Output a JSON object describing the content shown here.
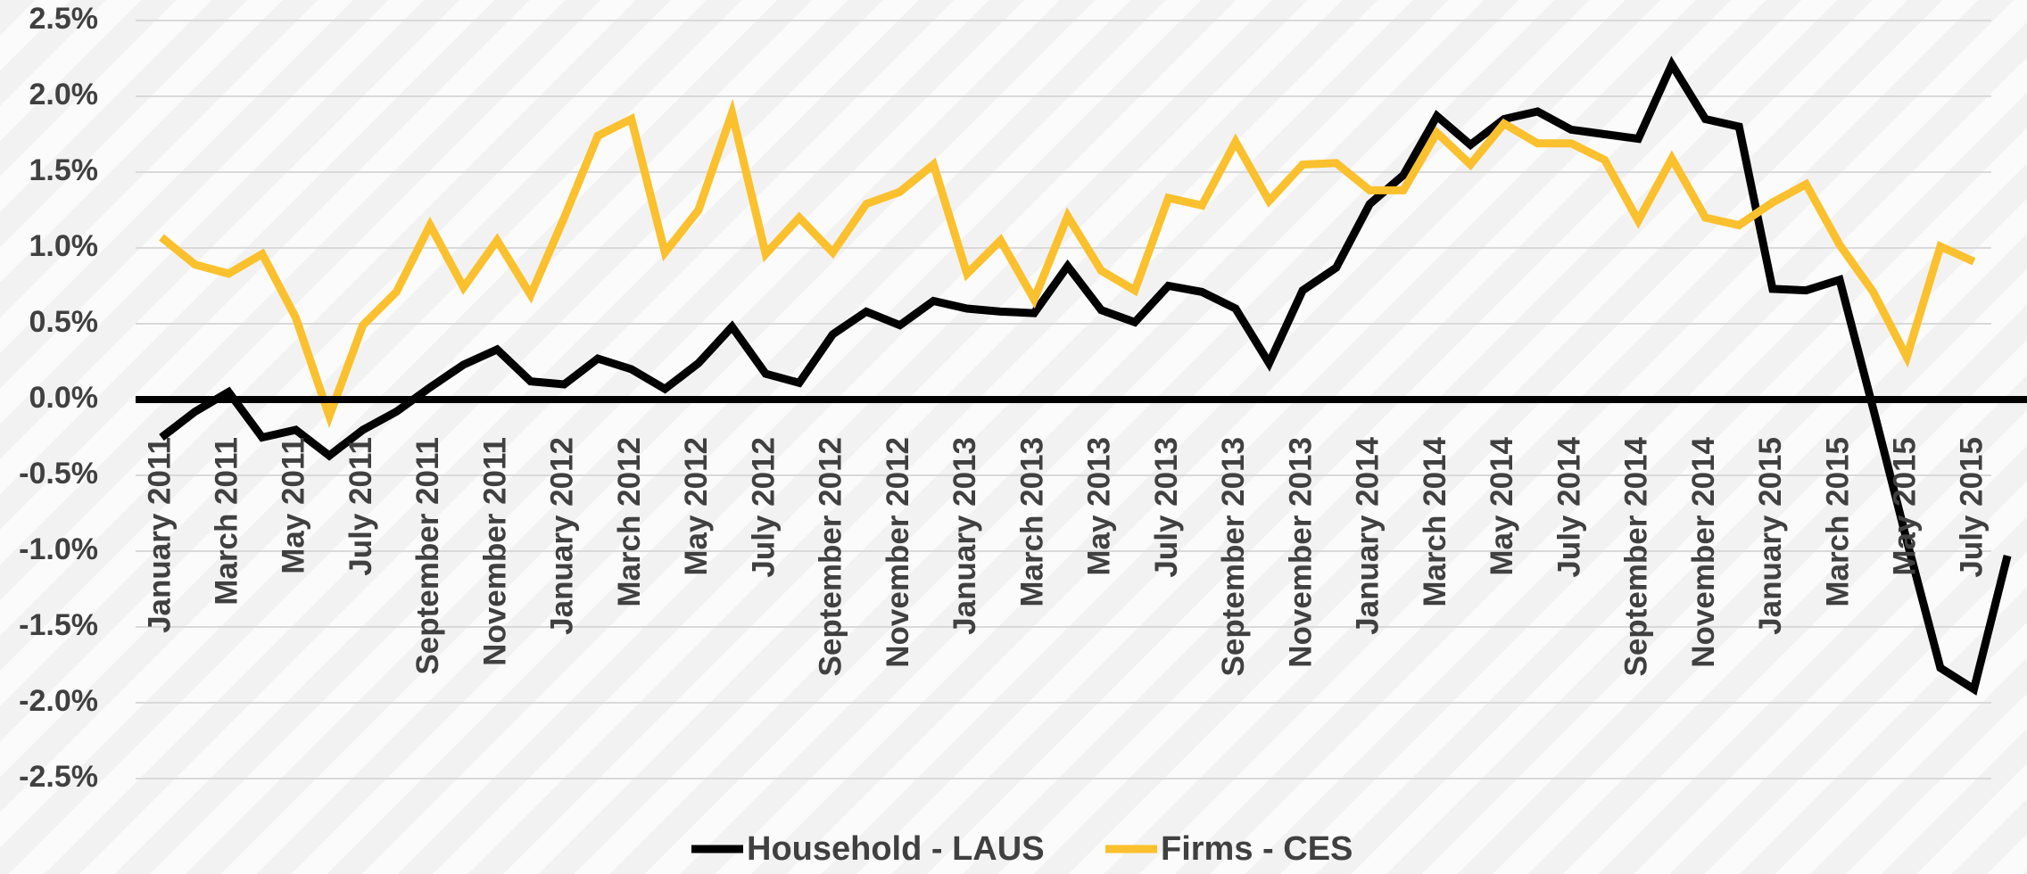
{
  "chart_data": {
    "type": "line",
    "categories": [
      "January 2011",
      null,
      "March 2011",
      null,
      "May 2011",
      null,
      "July 2011",
      null,
      "September 2011",
      null,
      "November 2011",
      null,
      "January 2012",
      null,
      "March 2012",
      null,
      "May 2012",
      null,
      "July 2012",
      null,
      "September 2012",
      null,
      "November 2012",
      null,
      "January 2013",
      null,
      "March 2013",
      null,
      "May 2013",
      null,
      "July 2013",
      null,
      "September 2013",
      null,
      "November 2013",
      null,
      "January 2014",
      null,
      "March 2014",
      null,
      "May 2014",
      null,
      "July 2014",
      null,
      "September 2014",
      null,
      "November 2014",
      null,
      "January 2015",
      null,
      "March 2015",
      null,
      "May 2015",
      null,
      "July 2015",
      null
    ],
    "series": [
      {
        "name": "Household - LAUS",
        "color": "#000000",
        "values": [
          -0.25,
          -0.08,
          0.05,
          -0.25,
          -0.2,
          -0.37,
          -0.2,
          -0.08,
          0.08,
          0.23,
          0.33,
          0.12,
          0.1,
          0.27,
          0.2,
          0.07,
          0.24,
          0.48,
          0.17,
          0.11,
          0.43,
          0.58,
          0.49,
          0.65,
          0.6,
          0.58,
          0.57,
          0.88,
          0.59,
          0.51,
          0.75,
          0.71,
          0.6,
          0.24,
          0.72,
          0.87,
          1.29,
          1.48,
          1.87,
          1.68,
          1.85,
          1.9,
          1.78,
          1.75,
          1.72,
          2.21,
          1.85,
          1.8,
          0.73,
          0.72,
          0.79,
          -0.06,
          -0.93,
          -1.77,
          -1.91,
          -1.03
        ]
      },
      {
        "name": "Firms - CES",
        "color": "#fbc02d",
        "values": [
          1.07,
          0.89,
          0.83,
          0.96,
          0.54,
          -0.11,
          0.49,
          0.71,
          1.15,
          0.74,
          1.05,
          0.69,
          1.2,
          1.74,
          1.85,
          0.97,
          1.25,
          1.89,
          0.96,
          1.2,
          0.97,
          1.29,
          1.37,
          1.55,
          0.83,
          1.05,
          0.66,
          1.21,
          0.85,
          0.72,
          1.33,
          1.28,
          1.7,
          1.31,
          1.55,
          1.56,
          1.38,
          1.38,
          1.76,
          1.55,
          1.82,
          1.69,
          1.69,
          1.58,
          1.18,
          1.59,
          1.2,
          1.15,
          1.3,
          1.42,
          1.02,
          0.71,
          0.28,
          1.01,
          0.91,
          null
        ]
      }
    ],
    "ylim": [
      -2.5,
      2.5
    ],
    "yticks": [
      {
        "value": -2.5,
        "label": "-2.5%"
      },
      {
        "value": -2,
        "label": "-2.0%"
      },
      {
        "value": -1.5,
        "label": "-1.5%"
      },
      {
        "value": -1,
        "label": "-1.0%"
      },
      {
        "value": -0.5,
        "label": "-0.5%"
      },
      {
        "value": 0,
        "label": "0.0%"
      },
      {
        "value": 0.5,
        "label": "0.5%"
      },
      {
        "value": 1,
        "label": "1.0%"
      },
      {
        "value": 1.5,
        "label": "1.5%"
      },
      {
        "value": 2,
        "label": "2.0%"
      },
      {
        "value": 2.5,
        "label": "2.5%"
      }
    ],
    "grid": true,
    "legend": "bottom"
  }
}
